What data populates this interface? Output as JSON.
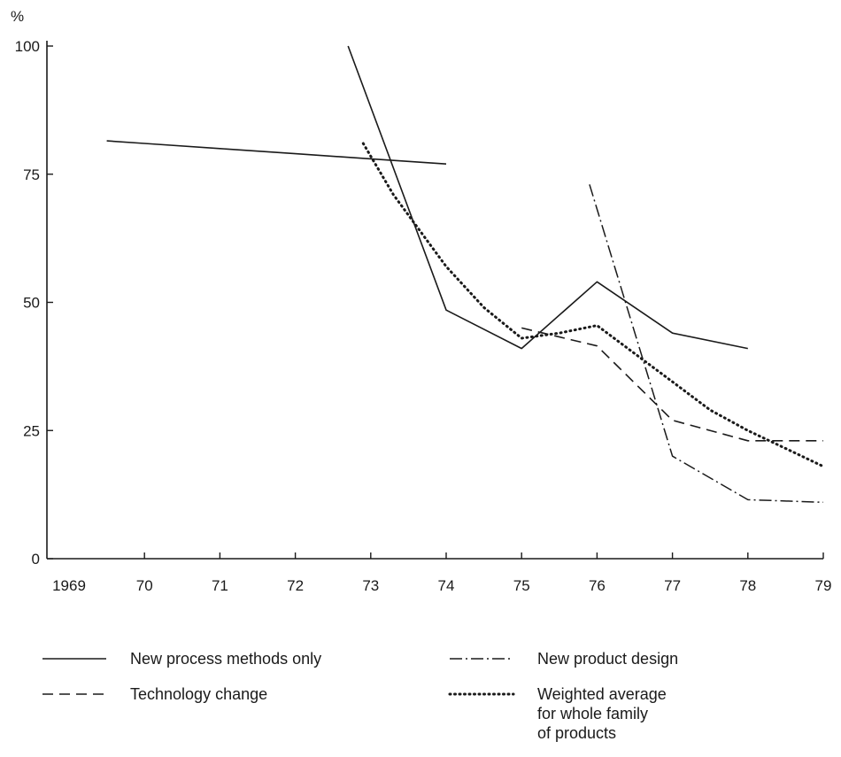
{
  "chart_data": {
    "type": "line",
    "ylabel": "%",
    "xlabel": "",
    "ylim": [
      0,
      100
    ],
    "xlim": [
      1969,
      1979
    ],
    "grid": false,
    "legend": "bottom",
    "x_ticks": [
      {
        "value": 1969,
        "label": "1969"
      },
      {
        "value": 1970,
        "label": "70"
      },
      {
        "value": 1971,
        "label": "71"
      },
      {
        "value": 1972,
        "label": "72"
      },
      {
        "value": 1973,
        "label": "73"
      },
      {
        "value": 1974,
        "label": "74"
      },
      {
        "value": 1975,
        "label": "75"
      },
      {
        "value": 1976,
        "label": "76"
      },
      {
        "value": 1977,
        "label": "77"
      },
      {
        "value": 1978,
        "label": "78"
      },
      {
        "value": 1979,
        "label": "79"
      }
    ],
    "y_ticks": [
      {
        "value": 0,
        "label": "0"
      },
      {
        "value": 25,
        "label": "25"
      },
      {
        "value": 50,
        "label": "50"
      },
      {
        "value": 75,
        "label": "75"
      },
      {
        "value": 100,
        "label": "100"
      }
    ],
    "series": [
      {
        "id": "process-early",
        "legend_key": "process",
        "style": "solid",
        "points": [
          [
            1969.5,
            81.5
          ],
          [
            1970,
            81
          ],
          [
            1971,
            80
          ],
          [
            1972,
            79
          ],
          [
            1973,
            78
          ],
          [
            1974,
            77
          ]
        ]
      },
      {
        "id": "process-late",
        "legend_key": "process",
        "style": "solid",
        "points": [
          [
            1972.7,
            100
          ],
          [
            1974,
            48.5
          ],
          [
            1975,
            41
          ],
          [
            1976,
            54
          ],
          [
            1977,
            44
          ],
          [
            1978,
            41
          ]
        ]
      },
      {
        "id": "technology",
        "legend_key": "technology",
        "style": "dashed",
        "points": [
          [
            1975,
            45
          ],
          [
            1976,
            41.5
          ],
          [
            1977,
            27
          ],
          [
            1978,
            23
          ],
          [
            1979,
            23
          ]
        ]
      },
      {
        "id": "product",
        "legend_key": "product",
        "style": "dashdot",
        "points": [
          [
            1975.9,
            73
          ],
          [
            1977,
            20
          ],
          [
            1978,
            11.5
          ],
          [
            1979,
            11
          ]
        ]
      },
      {
        "id": "weighted",
        "legend_key": "weighted",
        "style": "dotted",
        "points": [
          [
            1972.9,
            81
          ],
          [
            1973.3,
            71
          ],
          [
            1974,
            57
          ],
          [
            1974.5,
            49
          ],
          [
            1975,
            43
          ],
          [
            1975.5,
            44
          ],
          [
            1976,
            45.5
          ],
          [
            1976.5,
            40
          ],
          [
            1977,
            34.5
          ],
          [
            1977.5,
            29
          ],
          [
            1978,
            25
          ],
          [
            1978.5,
            21.5
          ],
          [
            1979,
            18
          ]
        ]
      }
    ],
    "legend_entries": [
      {
        "key": "process",
        "style": "solid",
        "lines": [
          "New process methods only"
        ]
      },
      {
        "key": "technology",
        "style": "dashed",
        "lines": [
          "Technology change"
        ]
      },
      {
        "key": "product",
        "style": "dashdot",
        "lines": [
          "New product design"
        ]
      },
      {
        "key": "weighted",
        "style": "dotted",
        "lines": [
          "Weighted average",
          "for whole family",
          "of products"
        ]
      }
    ]
  }
}
